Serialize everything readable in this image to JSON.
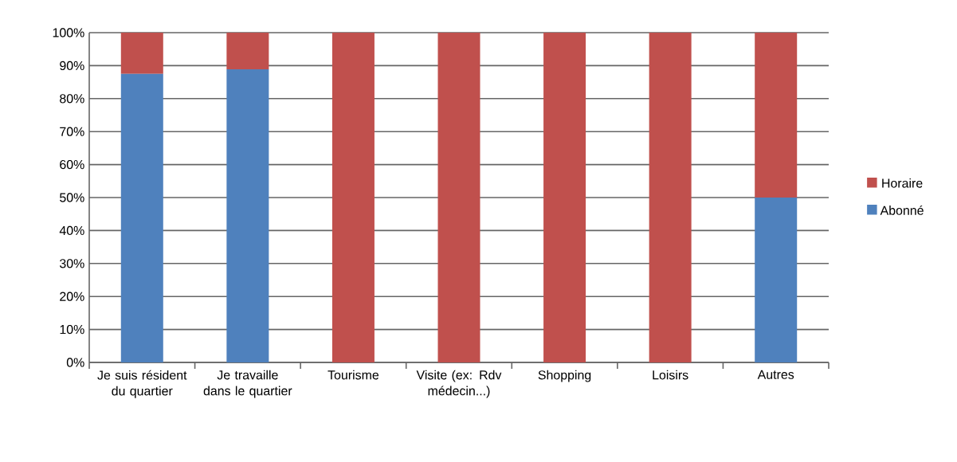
{
  "chart_data": {
    "type": "bar",
    "stacked": true,
    "categories": [
      "Je suis résident du quartier",
      "Je travaille dans le quartier",
      "Tourisme",
      "Visite (ex: Rdv médecin...)",
      "Shopping",
      "Loisirs",
      "Autres"
    ],
    "series": [
      {
        "name": "Abonné",
        "color": "#4f81bd",
        "values": [
          87.5,
          88.9,
          0,
          0,
          0,
          0,
          50
        ]
      },
      {
        "name": "Horaire",
        "color": "#c0504d",
        "values": [
          12.5,
          11.1,
          100,
          100,
          100,
          100,
          50
        ]
      }
    ],
    "ylim": [
      0,
      100
    ],
    "yticks": [
      {
        "value": 0,
        "label": "0%"
      },
      {
        "value": 10,
        "label": "10%"
      },
      {
        "value": 20,
        "label": "20%"
      },
      {
        "value": 30,
        "label": "30%"
      },
      {
        "value": 40,
        "label": "40%"
      },
      {
        "value": 50,
        "label": "50%"
      },
      {
        "value": 60,
        "label": "60%"
      },
      {
        "value": 70,
        "label": "70%"
      },
      {
        "value": 80,
        "label": "80%"
      },
      {
        "value": 90,
        "label": "90%"
      },
      {
        "value": 100,
        "label": "100%"
      }
    ],
    "grid": "y",
    "legend": "right"
  }
}
